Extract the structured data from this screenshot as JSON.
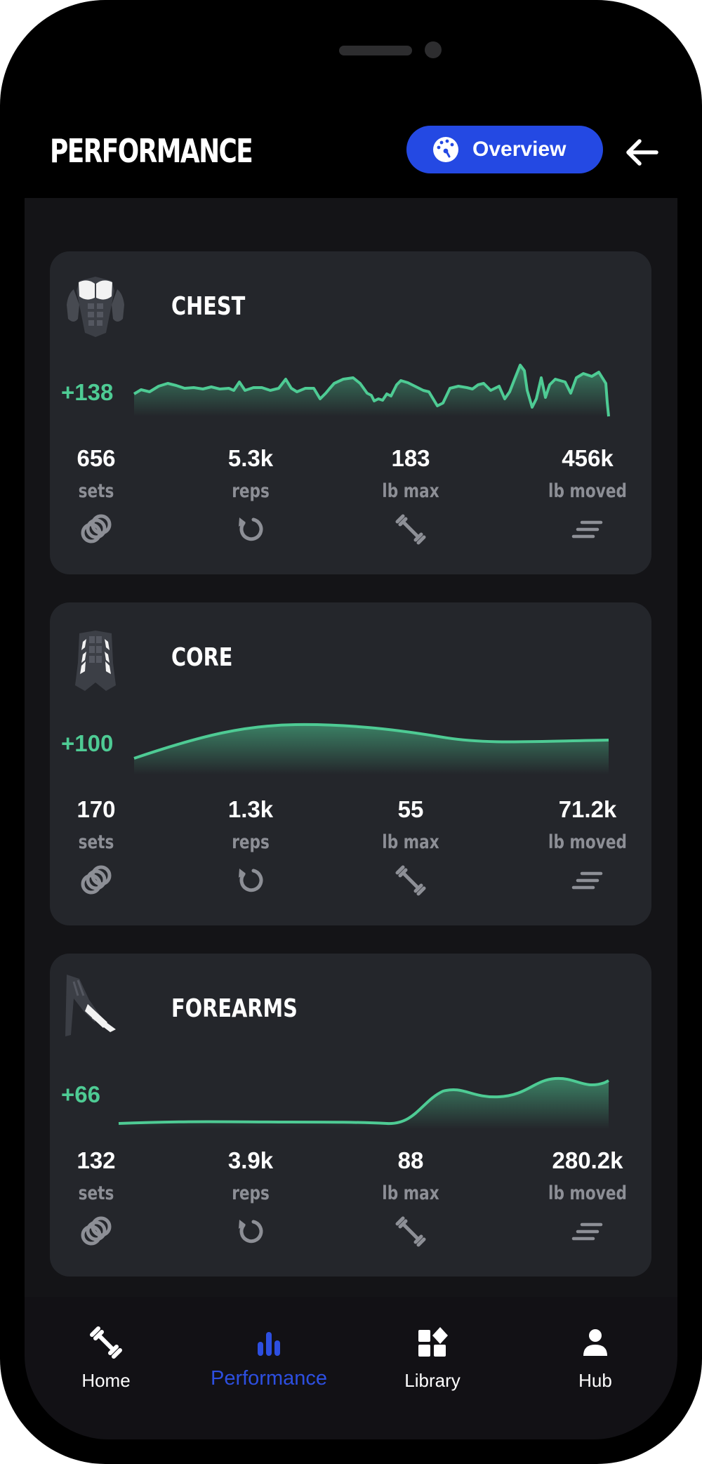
{
  "header": {
    "title": "PERFORMANCE",
    "overview_label": "Overview"
  },
  "cards": [
    {
      "title": "CHEST",
      "delta": "+138",
      "stats": [
        {
          "value": "656",
          "label": "sets"
        },
        {
          "value": "5.3k",
          "label": "reps"
        },
        {
          "value": "183",
          "label": "lb max"
        },
        {
          "value": "456k",
          "label": "lb moved"
        }
      ]
    },
    {
      "title": "CORE",
      "delta": "+100",
      "stats": [
        {
          "value": "170",
          "label": "sets"
        },
        {
          "value": "1.3k",
          "label": "reps"
        },
        {
          "value": "55",
          "label": "lb max"
        },
        {
          "value": "71.2k",
          "label": "lb moved"
        }
      ]
    },
    {
      "title": "FOREARMS",
      "delta": "+66",
      "stats": [
        {
          "value": "132",
          "label": "sets"
        },
        {
          "value": "3.9k",
          "label": "reps"
        },
        {
          "value": "88",
          "label": "lb max"
        },
        {
          "value": "280.2k",
          "label": "lb moved"
        }
      ]
    }
  ],
  "nav": {
    "items": [
      {
        "label": "Home",
        "icon": "dumbbell-icon"
      },
      {
        "label": "Performance",
        "icon": "bar-chart-icon"
      },
      {
        "label": "Library",
        "icon": "library-icon"
      },
      {
        "label": "Hub",
        "icon": "person-icon"
      }
    ],
    "active": "Performance"
  },
  "colors": {
    "accent": "#2449e3",
    "positive": "#4ecb94",
    "card": "#24262b",
    "background": "#141417"
  }
}
